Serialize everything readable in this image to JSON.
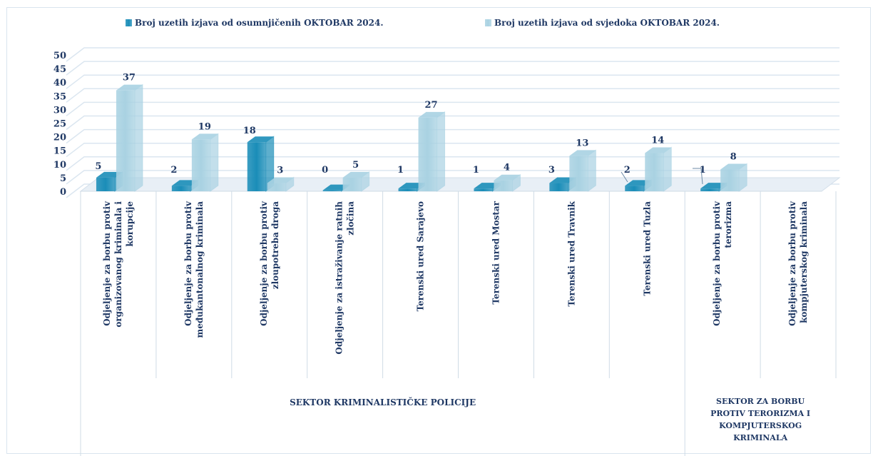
{
  "chart_data": {
    "type": "bar",
    "three_d": true,
    "legend_position": "top",
    "grid": true,
    "ylim": [
      0,
      50
    ],
    "yticks": [
      0,
      5,
      10,
      15,
      20,
      25,
      30,
      35,
      40,
      45,
      50
    ],
    "categories": [
      "Odjeljenje za borbu protiv organizovanog kriminala i korupcije",
      "Odjeljenje za borbu protiv međukantonalnog kriminala",
      "Odjeljenje za borbu protiv zloupotreba droga",
      "Odjeljenje za istraživanje ratnih zločina",
      "Terenski ured Sarajevo",
      "Terenski ured Mostar",
      "Terenski ured Travnik",
      "Terenski ured Tuzla",
      "Odjeljenje za borbu protiv terorizma",
      "Odjeljenje za borbu protiv kompjuterskog kriminala"
    ],
    "category_lines": [
      [
        "Odjeljenje za borbu protiv",
        "organizovanog kriminala i",
        "korupcije"
      ],
      [
        "Odjeljenje za borbu protiv",
        "međukantonalnog kriminala"
      ],
      [
        "Odjeljenje za borbu protiv",
        "zloupotreba droga"
      ],
      [
        "Odjeljenje za istraživanje ratnih",
        "zločina"
      ],
      [
        "Terenski ured Sarajevo"
      ],
      [
        "Terenski ured Mostar"
      ],
      [
        "Terenski ured Travnik"
      ],
      [
        "Terenski ured Tuzla"
      ],
      [
        "Odjeljenje za  borbu protiv",
        "terorizma"
      ],
      [
        "Odjeljenje za borbu protiv",
        "kompjuterskog kriminala"
      ]
    ],
    "groups": [
      {
        "label_lines": [
          "SEKTOR KRIMINALISTIČKE POLICIJE"
        ],
        "category_count": 8
      },
      {
        "label_lines": [
          "SEKTOR ZA BORBU",
          "PROTIV TERORIZMA I",
          "KOMPJUTERSKOG",
          "KRIMINALA"
        ],
        "category_count": 2
      }
    ],
    "series": [
      {
        "name": "Broj uzetih izjava od osumnjičenih OKTOBAR  2024.",
        "color": "#1a8db8",
        "values": [
          5,
          2,
          18,
          0,
          1,
          1,
          3,
          2,
          1,
          null
        ],
        "labels": [
          "5",
          "2",
          "18",
          "0",
          "1",
          "1",
          "3",
          "2",
          "1",
          ""
        ]
      },
      {
        "name": "Broj uzetih izjava od svjedoka OKTOBAR  2024.",
        "color": "#a9d2e2",
        "values": [
          37,
          19,
          3,
          5,
          27,
          4,
          13,
          14,
          8,
          null
        ],
        "labels": [
          "37",
          "19",
          "3",
          "5",
          "27",
          "4",
          "13",
          "14",
          "8",
          ""
        ]
      }
    ]
  }
}
